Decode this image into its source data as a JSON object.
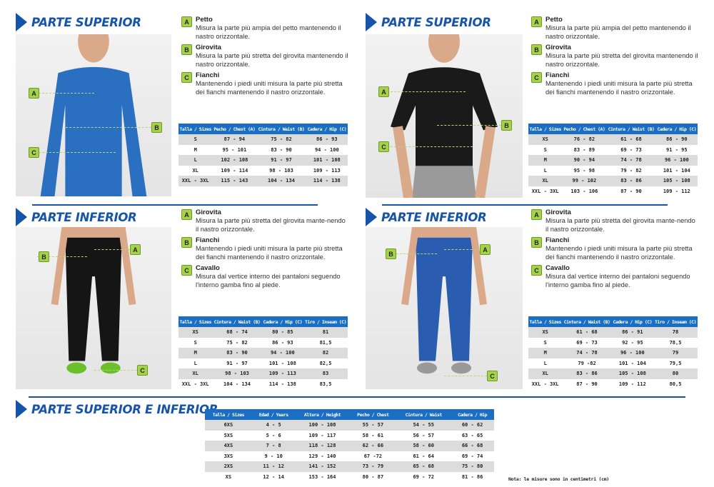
{
  "colors": {
    "brand_blue": "#1554a8",
    "table_header": "#1a6ec4",
    "marker_green": "#a6d14a",
    "row_stripe": "#dcdcdc"
  },
  "panels": [
    {
      "heading": "PARTE SUPERIOR",
      "figure": "man-long-sleeve-shirt",
      "items": [
        {
          "badge": "A",
          "title": "Petto",
          "text": "Misura la parte più ampia del petto mantenendo il nastro orizzontale."
        },
        {
          "badge": "B",
          "title": "Girovita",
          "text": "Misura la parte più stretta del girovita mantenendo il nastro orizzontale."
        },
        {
          "badge": "C",
          "title": "Fianchi",
          "text": "Mantenendo i piedi uniti misura la parte più stretta dei fianchi mantenendo il nastro orizzontale."
        }
      ],
      "table": {
        "headers": [
          "Talla / Sizes",
          "Pecho / Chest (A)",
          "Cintura / Waist (B)",
          "Cadera / Hip (C)"
        ],
        "rows": [
          [
            "S",
            "87 - 94",
            "75 - 82",
            "86 - 93"
          ],
          [
            "M",
            "95 - 101",
            "83 - 90",
            "94 - 100"
          ],
          [
            "L",
            "102 - 108",
            "91 - 97",
            "101 - 108"
          ],
          [
            "XL",
            "109 - 114",
            "98 - 103",
            "109 - 113"
          ],
          [
            "XXL - 3XL",
            "115 - 143",
            "104 - 134",
            "114 - 138"
          ]
        ]
      }
    },
    {
      "heading": "PARTE SUPERIOR",
      "figure": "woman-t-shirt",
      "items": [
        {
          "badge": "A",
          "title": "Petto",
          "text": "Misura la parte più ampia del petto mantenendo il nastro orizzontale."
        },
        {
          "badge": "B",
          "title": "Girovita",
          "text": "Misura la parte più stretta del girovita mantenendo il nastro orizzontale."
        },
        {
          "badge": "C",
          "title": "Fianchi",
          "text": "Mantenendo i piedi uniti misura la parte più stretta dei fianchi mantenendo il nastro orizzontale."
        }
      ],
      "table": {
        "headers": [
          "Talla / Sizes",
          "Pecho / Chest (A)",
          "Cintura / Waist (B)",
          "Cadera / Hip (C)"
        ],
        "rows": [
          [
            "XS",
            "76 - 82",
            "61 - 68",
            "86 - 90"
          ],
          [
            "S",
            "83 - 89",
            "69 - 73",
            "91 - 95"
          ],
          [
            "M",
            "90 - 94",
            "74 - 78",
            "96 - 100"
          ],
          [
            "L",
            "95 - 98",
            "79 - 82",
            "101 - 104"
          ],
          [
            "XL",
            "99 - 102",
            "83 - 86",
            "105 - 108"
          ],
          [
            "XXL - 3XL",
            "103 - 106",
            "87 - 90",
            "109 - 112"
          ]
        ]
      }
    },
    {
      "heading": "PARTE INFERIOR",
      "figure": "man-tights",
      "items": [
        {
          "badge": "A",
          "title": "Girovita",
          "text": "Misura la parte più stretta del girovita mante-nendo il nastro orizzontale."
        },
        {
          "badge": "B",
          "title": "Fianchi",
          "text": "Mantenendo i piedi uniti misura la parte più stretta dei fianchi mantenendo il nastro orizzontale."
        },
        {
          "badge": "C",
          "title": "Cavallo",
          "text": "Misura dal vertice interno dei pantaloni seguendo l'interno gamba fino al piede."
        }
      ],
      "table": {
        "headers": [
          "Talla / Sizes",
          "Cintura / Waist (B)",
          "Cadera / Hip (C)",
          "Tiro / Inseam (C)"
        ],
        "rows": [
          [
            "XS",
            "68 - 74",
            "80 - 85",
            "81"
          ],
          [
            "S",
            "75 - 82",
            "86 - 93",
            "81,5"
          ],
          [
            "M",
            "83 - 90",
            "94 - 100",
            "82"
          ],
          [
            "L",
            "91 - 97",
            "101 - 108",
            "82,5"
          ],
          [
            "XL",
            "98 - 103",
            "109 - 113",
            "83"
          ],
          [
            "XXL - 3XL",
            "104 - 134",
            "114 - 138",
            "83,5"
          ]
        ]
      }
    },
    {
      "heading": "PARTE INFERIOR",
      "figure": "woman-leggings",
      "items": [
        {
          "badge": "A",
          "title": "Girovita",
          "text": "Misura la parte più stretta del girovita mante-nendo il nastro orizzontale."
        },
        {
          "badge": "B",
          "title": "Fianchi",
          "text": "Mantenendo i piedi uniti misura la parte più stretta dei fianchi mantenendo il nastro orizzontale."
        },
        {
          "badge": "C",
          "title": "Cavallo",
          "text": "Misura dal vertice interno dei pantaloni seguendo l'interno gamba fino al piede."
        }
      ],
      "table": {
        "headers": [
          "Talla / Sizes",
          "Cintura / Waist (B)",
          "Cadera / Hip (C)",
          "Tiro / Inseam (C)"
        ],
        "rows": [
          [
            "XS",
            "61 - 68",
            "86 - 91",
            "78"
          ],
          [
            "S",
            "69 - 73",
            "92 - 95",
            "78,5"
          ],
          [
            "M",
            "74 - 78",
            "96 - 100",
            "79"
          ],
          [
            "L",
            "79 -82",
            "101 - 104",
            "79,5"
          ],
          [
            "XL",
            "83 - 86",
            "105 - 108",
            "80"
          ],
          [
            "XXL - 3XL",
            "87 - 90",
            "109 - 112",
            "80,5"
          ]
        ]
      }
    }
  ],
  "kids": {
    "heading": "PARTE SUPERIOR E INFERIOR",
    "table": {
      "headers": [
        "Talla / Sizes",
        "Edad / Years",
        "Altura / Height",
        "Pecho / Chest",
        "Cintura / Waist",
        "Cadera / Hip"
      ],
      "rows": [
        [
          "6XS",
          "4 - 5",
          "100 - 108",
          "55 - 57",
          "54 - 55",
          "60 - 62"
        ],
        [
          "5XS",
          "5 - 6",
          "109 - 117",
          "58 - 61",
          "56 - 57",
          "63 - 65"
        ],
        [
          "4XS",
          "7 - 8",
          "118 - 128",
          "62 - 66",
          "58 - 60",
          "66 - 68"
        ],
        [
          "3XS",
          "9 - 10",
          "129 - 140",
          "67 -72",
          "61 - 64",
          "69 - 74"
        ],
        [
          "2XS",
          "11 - 12",
          "141 - 152",
          "73 - 79",
          "65 - 68",
          "75 - 80"
        ],
        [
          "XS",
          "12 - 14",
          "153 - 164",
          "80 - 87",
          "69 - 72",
          "81 - 86"
        ]
      ]
    },
    "note": "Nota: le misure sono in centimetri (cm)"
  }
}
